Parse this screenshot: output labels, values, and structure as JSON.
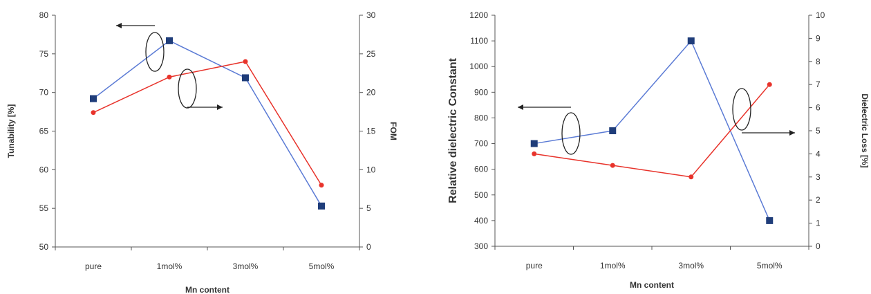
{
  "chart_data": [
    {
      "type": "line",
      "categories": [
        "pure",
        "1mol%",
        "3mol%",
        "5mol%"
      ],
      "xlabel": "Mn content",
      "ylabel": "Tunability [%]",
      "y2label": "FOM",
      "ylim": [
        50,
        80
      ],
      "yticks": [
        50,
        55,
        60,
        65,
        70,
        75,
        80
      ],
      "y2lim": [
        0,
        30
      ],
      "y2ticks": [
        0,
        5,
        10,
        15,
        20,
        25,
        30
      ],
      "grid": false,
      "series": [
        {
          "axis": "left",
          "marker": "square",
          "color": "#1f3d7a",
          "values": [
            69.2,
            76.7,
            71.9,
            55.3
          ]
        },
        {
          "axis": "right",
          "marker": "circle",
          "color": "#e8332b",
          "values": [
            17.4,
            22.0,
            24.0,
            8.0
          ]
        }
      ],
      "annotations": [
        {
          "type": "ellipse-arrow",
          "points_to": "left-axis",
          "series_index": 0
        },
        {
          "type": "ellipse-arrow",
          "points_to": "right-axis",
          "series_index": 1
        }
      ]
    },
    {
      "type": "line",
      "categories": [
        "pure",
        "1mol%",
        "3mol%",
        "5mol%"
      ],
      "xlabel": "Mn content",
      "ylabel": "Relative dielectric Constant",
      "y2label": "Dielectric Loss [%]",
      "ylim": [
        300,
        1200
      ],
      "yticks": [
        300,
        400,
        500,
        600,
        700,
        800,
        900,
        1000,
        1100,
        1200
      ],
      "y2lim": [
        0,
        10
      ],
      "y2ticks": [
        0,
        1,
        2,
        3,
        4,
        5,
        6,
        7,
        8,
        9,
        10
      ],
      "grid": false,
      "series": [
        {
          "axis": "left",
          "marker": "square",
          "color": "#1f3d7a",
          "values": [
            700,
            750,
            1100,
            400
          ]
        },
        {
          "axis": "right",
          "marker": "circle",
          "color": "#e8332b",
          "values": [
            4.0,
            3.5,
            3.0,
            7.0
          ]
        }
      ],
      "annotations": [
        {
          "type": "ellipse-arrow",
          "points_to": "left-axis",
          "series_index": 0
        },
        {
          "type": "ellipse-arrow",
          "points_to": "right-axis",
          "series_index": 1
        }
      ]
    }
  ]
}
